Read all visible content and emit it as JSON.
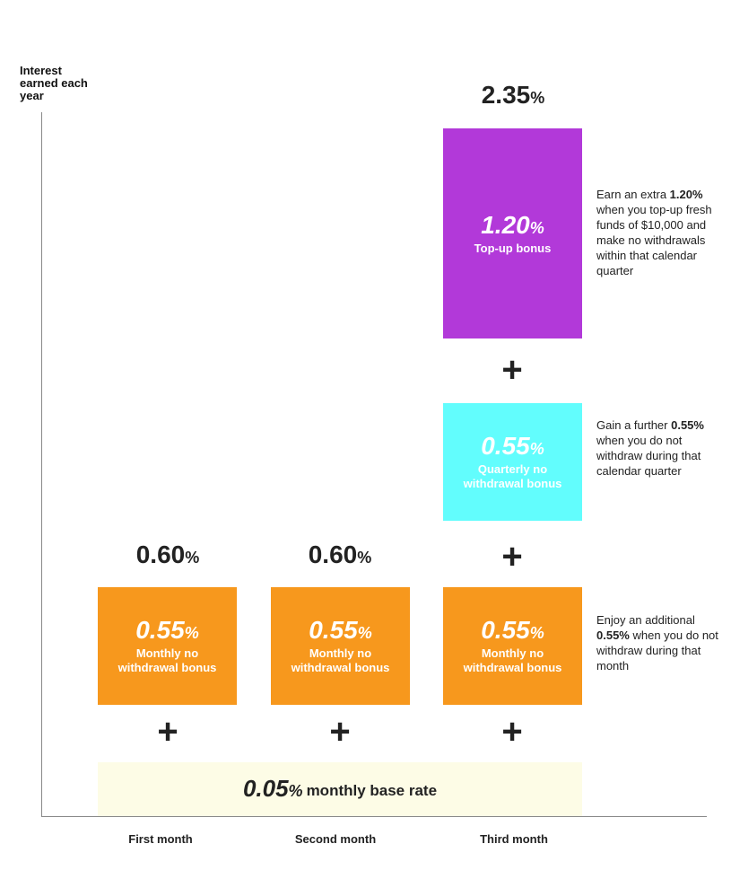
{
  "chart_data": {
    "type": "bar",
    "stacked": true,
    "ylabel": "Interest earned each year",
    "categories": [
      "First month",
      "Second month",
      "Third month"
    ],
    "totals": [
      {
        "value": "0.60",
        "unit": "%"
      },
      {
        "value": "0.60",
        "unit": "%"
      },
      {
        "value": "2.35",
        "unit": "%"
      }
    ],
    "series": [
      {
        "name": "monthly base rate",
        "values": [
          0.05,
          0.05,
          0.05
        ],
        "display": "0.05",
        "color": "#fdfce6"
      },
      {
        "name": "Monthly no withdrawal bonus",
        "values": [
          0.55,
          0.55,
          0.55
        ],
        "display": "0.55",
        "color": "#f7981d"
      },
      {
        "name": "Quarterly no withdrawal bonus",
        "values": [
          0,
          0,
          0.55
        ],
        "display": "0.55",
        "color": "#62fdfd"
      },
      {
        "name": "Top-up bonus",
        "values": [
          0,
          0,
          1.2
        ],
        "display": "1.20",
        "color": "#b239d9"
      }
    ],
    "unit": "%",
    "plus": "+",
    "notes": {
      "topup": {
        "pre": "Earn an extra ",
        "rate": "1.20%",
        "post": " when you top-up fresh funds of $10,000 and make no withdrawals within that calendar quarter"
      },
      "quarterly": {
        "pre": "Gain a further ",
        "rate": "0.55%",
        "post": " when you do not withdraw during that calendar quarter"
      },
      "monthly": {
        "pre": "Enjoy an additional ",
        "rate": "0.55%",
        "post": " when you do not withdraw during that month"
      }
    }
  }
}
